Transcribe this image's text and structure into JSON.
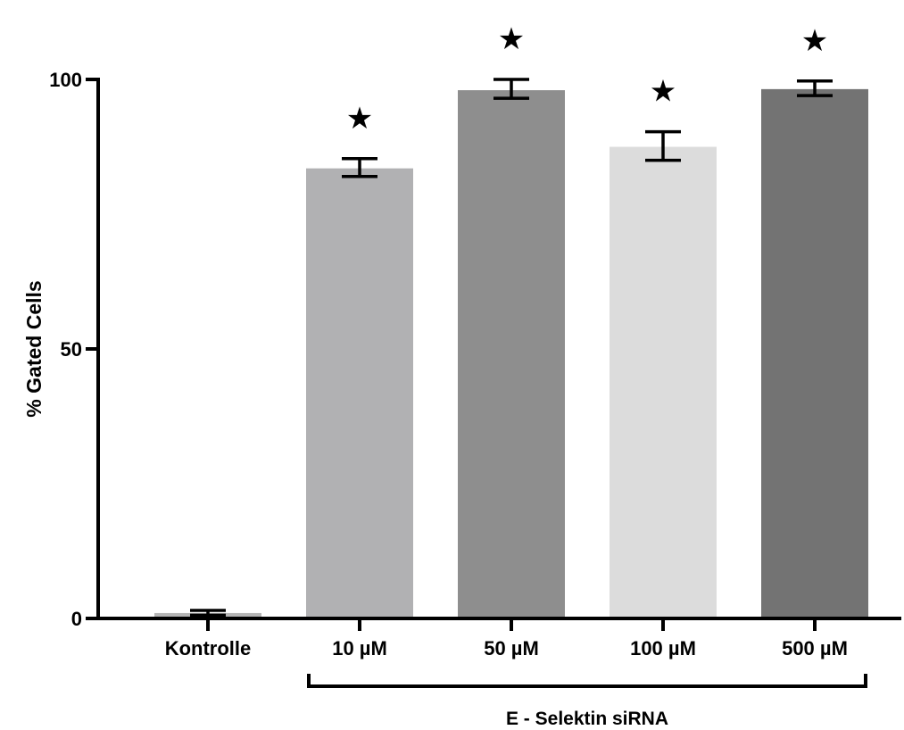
{
  "chart_data": {
    "type": "bar",
    "title": "",
    "xlabel": "",
    "ylabel": "% Gated Cells",
    "ylim": [
      0,
      100
    ],
    "yticks": [
      "0",
      "50",
      "100"
    ],
    "categories": [
      "Kontrolle",
      "10 µM",
      "50 µM",
      "100 µM",
      "500 µM"
    ],
    "values": [
      1.0,
      83.5,
      98.0,
      87.5,
      98.2
    ],
    "error_upper": [
      1.5,
      85.3,
      100.0,
      90.3,
      99.7
    ],
    "error_lower": [
      0.6,
      82.0,
      96.5,
      85.0,
      97.0
    ],
    "colors": [
      "#b5b5b5",
      "#b1b1b3",
      "#8e8e8e",
      "#dcdcdc",
      "#737373"
    ],
    "significance_marker": "★",
    "significant": [
      false,
      true,
      true,
      true,
      true
    ],
    "bracket_label": "E - Selektin siRNA",
    "bracket_categories": [
      "10 µM",
      "50 µM",
      "100 µM",
      "500 µM"
    ],
    "grid": false,
    "legend": "none"
  }
}
